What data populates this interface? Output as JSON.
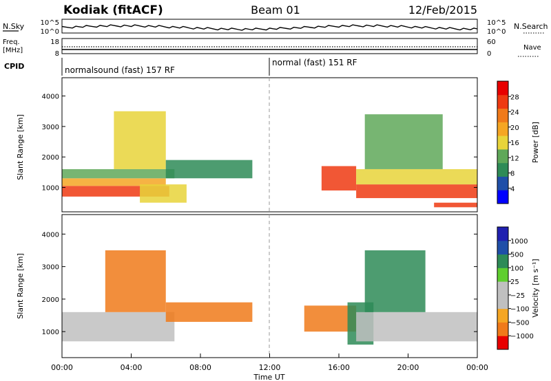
{
  "header": {
    "station": "Kodiak (fitACF)",
    "beam": "Beam 01",
    "date": "12/Feb/2015"
  },
  "nsky_panel": {
    "label": "N.Sky",
    "right_label": "N.Search",
    "left_ticks": [
      "10^5",
      "10^0"
    ],
    "right_ticks": [
      "10^5",
      "10^0"
    ]
  },
  "freq_panel": {
    "label_line1": "Freq.",
    "label_line2": "[MHz]",
    "right_label": "Nave",
    "left_ticks": [
      "18",
      "8"
    ],
    "right_ticks": [
      "60",
      "0"
    ]
  },
  "cpid": {
    "label": "CPID",
    "modes": [
      {
        "name": "normalsound (fast) 157 RF",
        "start_hour": 0
      },
      {
        "name": "normal (fast) 151 RF",
        "start_hour": 12
      }
    ]
  },
  "colors": {
    "power": [
      "#0000ff",
      "#1f4fa8",
      "#2e8b57",
      "#5fa859",
      "#e8d43a",
      "#f5a623",
      "#f07a1a",
      "#ee3a12",
      "#e80000"
    ],
    "velocity": [
      "#e80000",
      "#f07a1a",
      "#f5a623",
      "#c0c0c0",
      "#c0c0c0",
      "#5fce2f",
      "#2e8b57",
      "#1f4fa8",
      "#2020b0"
    ]
  },
  "chart_data": [
    {
      "type": "heatmap",
      "id": "power",
      "xlabel": "",
      "ylabel": "Slant Range [km]",
      "xlim": [
        0,
        24
      ],
      "ylim": [
        200,
        4600
      ],
      "yticks": [
        "1000",
        "2000",
        "3000",
        "4000"
      ],
      "colorbar": {
        "label": "Power [dB]",
        "ticks": [
          "28",
          "24",
          "20",
          "16",
          "12",
          "8",
          "4"
        ],
        "levels": [
          0,
          4,
          8,
          12,
          16,
          20,
          24,
          28,
          32
        ]
      },
      "regions": [
        {
          "x": [
            0.0,
            6.2
          ],
          "y": [
            700,
            1050
          ],
          "value": 28
        },
        {
          "x": [
            0.0,
            6.0
          ],
          "y": [
            1050,
            1300
          ],
          "value": 22
        },
        {
          "x": [
            0.0,
            6.5
          ],
          "y": [
            1300,
            1600
          ],
          "value": 14
        },
        {
          "x": [
            3.0,
            6.0
          ],
          "y": [
            1600,
            3500
          ],
          "value": 18
        },
        {
          "x": [
            6.0,
            11.0
          ],
          "y": [
            1300,
            1900
          ],
          "value": 10
        },
        {
          "x": [
            4.5,
            7.2
          ],
          "y": [
            500,
            1100
          ],
          "value": 16
        },
        {
          "x": [
            15.0,
            17.0
          ],
          "y": [
            900,
            1700
          ],
          "value": 30
        },
        {
          "x": [
            17.0,
            24.0
          ],
          "y": [
            650,
            1100
          ],
          "value": 29
        },
        {
          "x": [
            17.0,
            24.0
          ],
          "y": [
            1100,
            1600
          ],
          "value": 18
        },
        {
          "x": [
            17.5,
            22.0
          ],
          "y": [
            1600,
            3400
          ],
          "value": 14
        },
        {
          "x": [
            21.5,
            24.0
          ],
          "y": [
            350,
            500
          ],
          "value": 30
        }
      ]
    },
    {
      "type": "heatmap",
      "id": "velocity",
      "xlabel": "Time UT",
      "ylabel": "Slant Range [km]",
      "xlim": [
        0,
        24
      ],
      "ylim": [
        200,
        4600
      ],
      "xticks": [
        "00:00",
        "04:00",
        "08:00",
        "12:00",
        "16:00",
        "20:00",
        "00:00"
      ],
      "yticks": [
        "1000",
        "2000",
        "3000",
        "4000"
      ],
      "colorbar": {
        "label": "Velocity [m s⁻¹]",
        "ticks": [
          "1000",
          "500",
          "100",
          "25",
          "−25",
          "−100",
          "−500",
          "−1000"
        ],
        "levels": [
          -1000,
          -500,
          -100,
          -25,
          0,
          25,
          100,
          500,
          1000
        ]
      },
      "regions": [
        {
          "x": [
            0.0,
            6.5
          ],
          "y": [
            700,
            1600
          ],
          "value": 0
        },
        {
          "x": [
            2.5,
            6.0
          ],
          "y": [
            1600,
            3500
          ],
          "value": -150
        },
        {
          "x": [
            6.0,
            11.0
          ],
          "y": [
            1300,
            1900
          ],
          "value": -300
        },
        {
          "x": [
            14.0,
            17.0
          ],
          "y": [
            1000,
            1800
          ],
          "value": -400
        },
        {
          "x": [
            16.5,
            18.0
          ],
          "y": [
            600,
            1900
          ],
          "value": 200
        },
        {
          "x": [
            17.0,
            24.0
          ],
          "y": [
            700,
            1600
          ],
          "value": 0
        },
        {
          "x": [
            17.5,
            21.0
          ],
          "y": [
            1600,
            3500
          ],
          "value": 150
        }
      ]
    }
  ]
}
